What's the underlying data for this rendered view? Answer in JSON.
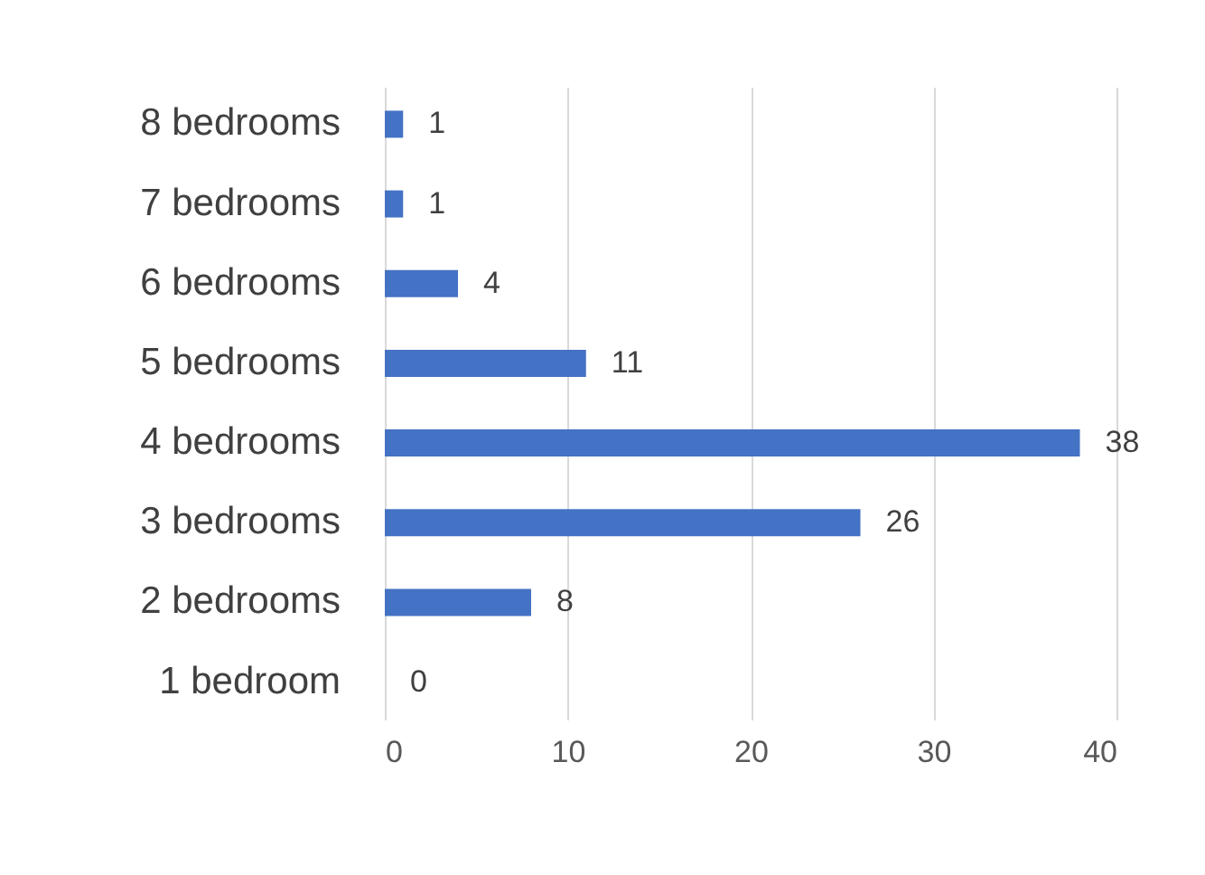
{
  "chart_data": {
    "type": "bar",
    "orientation": "horizontal",
    "categories": [
      "8 bedrooms",
      "7 bedrooms",
      "6 bedrooms",
      "5 bedrooms",
      "4 bedrooms",
      "3 bedrooms",
      "2 bedrooms",
      "1 bedroom"
    ],
    "values": [
      1,
      1,
      4,
      11,
      38,
      26,
      8,
      0
    ],
    "color": "#4472c4",
    "xlim": [
      0,
      40
    ],
    "xticks": [
      0,
      10,
      20,
      30,
      40
    ],
    "grid": "x",
    "data_labels": true
  }
}
